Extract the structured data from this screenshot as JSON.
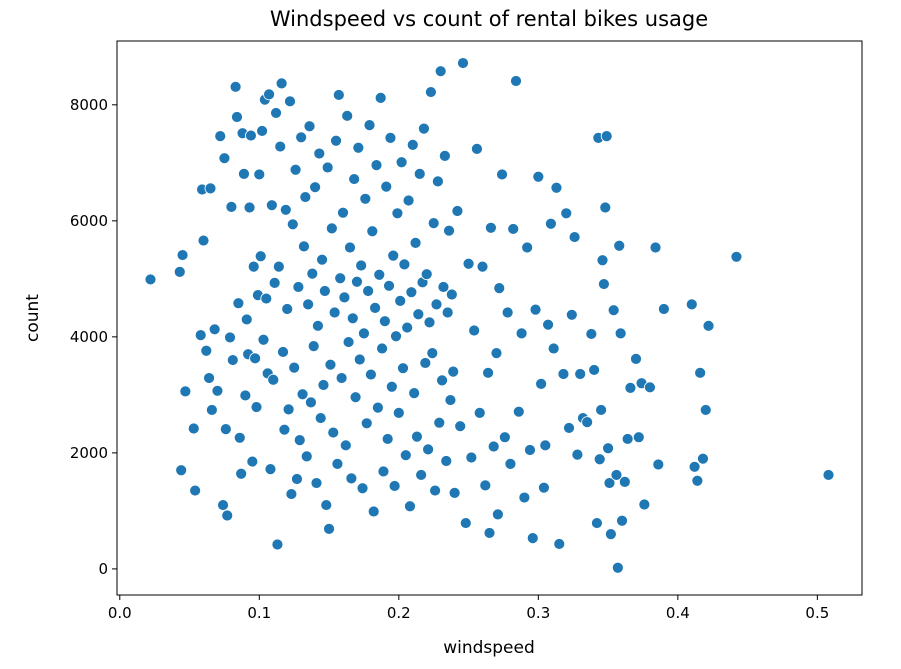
{
  "chart_data": {
    "type": "scatter",
    "title": "Windspeed vs count of rental bikes usage",
    "xlabel": "windspeed",
    "ylabel": "count",
    "xlim": [
      -0.002,
      0.532
    ],
    "ylim": [
      -450,
      9100
    ],
    "xticks": [
      "0.0",
      "0.1",
      "0.2",
      "0.3",
      "0.4",
      "0.5"
    ],
    "yticks": [
      "0",
      "2000",
      "4000",
      "6000",
      "8000"
    ],
    "grid": false,
    "legend": "none",
    "point_color": "#1f77b4",
    "series": [
      {
        "points": [
          [
            0.022,
            4990
          ],
          [
            0.043,
            5120
          ],
          [
            0.044,
            1700
          ],
          [
            0.045,
            5410
          ],
          [
            0.047,
            3060
          ],
          [
            0.053,
            2420
          ],
          [
            0.054,
            1350
          ],
          [
            0.058,
            4030
          ],
          [
            0.059,
            6540
          ],
          [
            0.06,
            5660
          ],
          [
            0.062,
            3760
          ],
          [
            0.064,
            3290
          ],
          [
            0.065,
            6560
          ],
          [
            0.066,
            2740
          ],
          [
            0.068,
            4130
          ],
          [
            0.07,
            3070
          ],
          [
            0.072,
            7460
          ],
          [
            0.074,
            1100
          ],
          [
            0.075,
            7080
          ],
          [
            0.076,
            2410
          ],
          [
            0.077,
            920
          ],
          [
            0.079,
            3990
          ],
          [
            0.08,
            6240
          ],
          [
            0.081,
            3600
          ],
          [
            0.083,
            8310
          ],
          [
            0.084,
            7790
          ],
          [
            0.085,
            4580
          ],
          [
            0.086,
            2260
          ],
          [
            0.087,
            1640
          ],
          [
            0.088,
            7510
          ],
          [
            0.089,
            6810
          ],
          [
            0.09,
            2990
          ],
          [
            0.091,
            4300
          ],
          [
            0.092,
            3700
          ],
          [
            0.093,
            6230
          ],
          [
            0.094,
            7470
          ],
          [
            0.095,
            1850
          ],
          [
            0.096,
            5210
          ],
          [
            0.097,
            3630
          ],
          [
            0.098,
            2790
          ],
          [
            0.099,
            4720
          ],
          [
            0.1,
            6800
          ],
          [
            0.101,
            5390
          ],
          [
            0.102,
            7550
          ],
          [
            0.103,
            3950
          ],
          [
            0.104,
            8090
          ],
          [
            0.105,
            4660
          ],
          [
            0.106,
            3370
          ],
          [
            0.107,
            8180
          ],
          [
            0.108,
            1720
          ],
          [
            0.109,
            6270
          ],
          [
            0.11,
            3260
          ],
          [
            0.111,
            4930
          ],
          [
            0.112,
            7860
          ],
          [
            0.113,
            420
          ],
          [
            0.114,
            5210
          ],
          [
            0.115,
            7280
          ],
          [
            0.116,
            8370
          ],
          [
            0.117,
            3740
          ],
          [
            0.118,
            2400
          ],
          [
            0.119,
            6190
          ],
          [
            0.12,
            4480
          ],
          [
            0.121,
            2750
          ],
          [
            0.122,
            8060
          ],
          [
            0.123,
            1290
          ],
          [
            0.124,
            5940
          ],
          [
            0.125,
            3470
          ],
          [
            0.126,
            6880
          ],
          [
            0.127,
            1550
          ],
          [
            0.128,
            4860
          ],
          [
            0.129,
            2220
          ],
          [
            0.13,
            7440
          ],
          [
            0.131,
            3010
          ],
          [
            0.132,
            5560
          ],
          [
            0.133,
            6410
          ],
          [
            0.134,
            1940
          ],
          [
            0.135,
            4560
          ],
          [
            0.136,
            7630
          ],
          [
            0.137,
            2870
          ],
          [
            0.138,
            5090
          ],
          [
            0.139,
            3840
          ],
          [
            0.14,
            6580
          ],
          [
            0.141,
            1480
          ],
          [
            0.142,
            4190
          ],
          [
            0.143,
            7160
          ],
          [
            0.144,
            2600
          ],
          [
            0.145,
            5330
          ],
          [
            0.146,
            3170
          ],
          [
            0.147,
            4790
          ],
          [
            0.148,
            1100
          ],
          [
            0.149,
            6920
          ],
          [
            0.15,
            690
          ],
          [
            0.151,
            3520
          ],
          [
            0.152,
            5870
          ],
          [
            0.153,
            2350
          ],
          [
            0.154,
            4420
          ],
          [
            0.155,
            7380
          ],
          [
            0.156,
            1810
          ],
          [
            0.157,
            8170
          ],
          [
            0.158,
            5010
          ],
          [
            0.159,
            3290
          ],
          [
            0.16,
            6140
          ],
          [
            0.161,
            4680
          ],
          [
            0.162,
            2130
          ],
          [
            0.163,
            7810
          ],
          [
            0.164,
            3910
          ],
          [
            0.165,
            5540
          ],
          [
            0.166,
            1560
          ],
          [
            0.167,
            4320
          ],
          [
            0.168,
            6720
          ],
          [
            0.169,
            2960
          ],
          [
            0.17,
            4950
          ],
          [
            0.171,
            7260
          ],
          [
            0.172,
            3610
          ],
          [
            0.173,
            5230
          ],
          [
            0.174,
            1390
          ],
          [
            0.175,
            4060
          ],
          [
            0.176,
            6380
          ],
          [
            0.177,
            2510
          ],
          [
            0.178,
            4790
          ],
          [
            0.179,
            7650
          ],
          [
            0.18,
            3350
          ],
          [
            0.181,
            5820
          ],
          [
            0.182,
            990
          ],
          [
            0.183,
            4500
          ],
          [
            0.184,
            6960
          ],
          [
            0.185,
            2780
          ],
          [
            0.186,
            5070
          ],
          [
            0.187,
            8120
          ],
          [
            0.188,
            3800
          ],
          [
            0.189,
            1680
          ],
          [
            0.19,
            4270
          ],
          [
            0.191,
            6590
          ],
          [
            0.192,
            2240
          ],
          [
            0.193,
            4880
          ],
          [
            0.194,
            7430
          ],
          [
            0.195,
            3140
          ],
          [
            0.196,
            5400
          ],
          [
            0.197,
            1430
          ],
          [
            0.198,
            4010
          ],
          [
            0.199,
            6130
          ],
          [
            0.2,
            2690
          ],
          [
            0.201,
            4620
          ],
          [
            0.202,
            7010
          ],
          [
            0.203,
            3460
          ],
          [
            0.204,
            5250
          ],
          [
            0.205,
            1960
          ],
          [
            0.206,
            4160
          ],
          [
            0.207,
            6350
          ],
          [
            0.208,
            1080
          ],
          [
            0.209,
            4770
          ],
          [
            0.21,
            7310
          ],
          [
            0.211,
            3030
          ],
          [
            0.212,
            5620
          ],
          [
            0.213,
            2280
          ],
          [
            0.214,
            4390
          ],
          [
            0.215,
            6810
          ],
          [
            0.216,
            1620
          ],
          [
            0.217,
            4940
          ],
          [
            0.218,
            7590
          ],
          [
            0.219,
            3550
          ],
          [
            0.22,
            5080
          ],
          [
            0.221,
            2060
          ],
          [
            0.222,
            4250
          ],
          [
            0.223,
            8220
          ],
          [
            0.224,
            3720
          ],
          [
            0.225,
            5960
          ],
          [
            0.226,
            1350
          ],
          [
            0.227,
            4560
          ],
          [
            0.228,
            6680
          ],
          [
            0.229,
            2520
          ],
          [
            0.23,
            8580
          ],
          [
            0.231,
            3250
          ],
          [
            0.232,
            4860
          ],
          [
            0.233,
            7120
          ],
          [
            0.234,
            1860
          ],
          [
            0.235,
            4420
          ],
          [
            0.236,
            5830
          ],
          [
            0.237,
            2910
          ],
          [
            0.238,
            4730
          ],
          [
            0.239,
            3400
          ],
          [
            0.24,
            1310
          ],
          [
            0.242,
            6170
          ],
          [
            0.244,
            2460
          ],
          [
            0.246,
            8720
          ],
          [
            0.248,
            790
          ],
          [
            0.25,
            5260
          ],
          [
            0.252,
            1920
          ],
          [
            0.254,
            4110
          ],
          [
            0.256,
            7240
          ],
          [
            0.258,
            2690
          ],
          [
            0.26,
            5210
          ],
          [
            0.262,
            1440
          ],
          [
            0.264,
            3380
          ],
          [
            0.265,
            620
          ],
          [
            0.266,
            5880
          ],
          [
            0.268,
            2110
          ],
          [
            0.27,
            3720
          ],
          [
            0.271,
            940
          ],
          [
            0.272,
            4840
          ],
          [
            0.274,
            6800
          ],
          [
            0.276,
            2270
          ],
          [
            0.278,
            4420
          ],
          [
            0.28,
            1810
          ],
          [
            0.282,
            5860
          ],
          [
            0.284,
            8410
          ],
          [
            0.286,
            2710
          ],
          [
            0.288,
            4060
          ],
          [
            0.29,
            1230
          ],
          [
            0.292,
            5540
          ],
          [
            0.294,
            2050
          ],
          [
            0.296,
            530
          ],
          [
            0.298,
            4470
          ],
          [
            0.3,
            6760
          ],
          [
            0.302,
            3190
          ],
          [
            0.304,
            1400
          ],
          [
            0.305,
            2130
          ],
          [
            0.307,
            4210
          ],
          [
            0.309,
            5950
          ],
          [
            0.311,
            3800
          ],
          [
            0.313,
            6570
          ],
          [
            0.315,
            430
          ],
          [
            0.318,
            3360
          ],
          [
            0.32,
            6130
          ],
          [
            0.322,
            2430
          ],
          [
            0.324,
            4380
          ],
          [
            0.326,
            5720
          ],
          [
            0.328,
            1970
          ],
          [
            0.33,
            3360
          ],
          [
            0.332,
            2600
          ],
          [
            0.335,
            2530
          ],
          [
            0.338,
            4050
          ],
          [
            0.34,
            3430
          ],
          [
            0.342,
            790
          ],
          [
            0.343,
            7430
          ],
          [
            0.344,
            1890
          ],
          [
            0.345,
            2740
          ],
          [
            0.346,
            5320
          ],
          [
            0.347,
            4910
          ],
          [
            0.348,
            6230
          ],
          [
            0.349,
            7460
          ],
          [
            0.35,
            2080
          ],
          [
            0.351,
            1480
          ],
          [
            0.352,
            600
          ],
          [
            0.354,
            4460
          ],
          [
            0.356,
            1620
          ],
          [
            0.357,
            20
          ],
          [
            0.358,
            5570
          ],
          [
            0.359,
            4060
          ],
          [
            0.36,
            830
          ],
          [
            0.362,
            1500
          ],
          [
            0.364,
            2240
          ],
          [
            0.366,
            3120
          ],
          [
            0.37,
            3620
          ],
          [
            0.372,
            2270
          ],
          [
            0.374,
            3200
          ],
          [
            0.376,
            1110
          ],
          [
            0.38,
            3130
          ],
          [
            0.384,
            5540
          ],
          [
            0.386,
            1800
          ],
          [
            0.39,
            4480
          ],
          [
            0.41,
            4560
          ],
          [
            0.412,
            1760
          ],
          [
            0.414,
            1520
          ],
          [
            0.416,
            3380
          ],
          [
            0.418,
            1900
          ],
          [
            0.42,
            2740
          ],
          [
            0.422,
            4190
          ],
          [
            0.442,
            5380
          ],
          [
            0.508,
            1620
          ]
        ]
      }
    ]
  }
}
